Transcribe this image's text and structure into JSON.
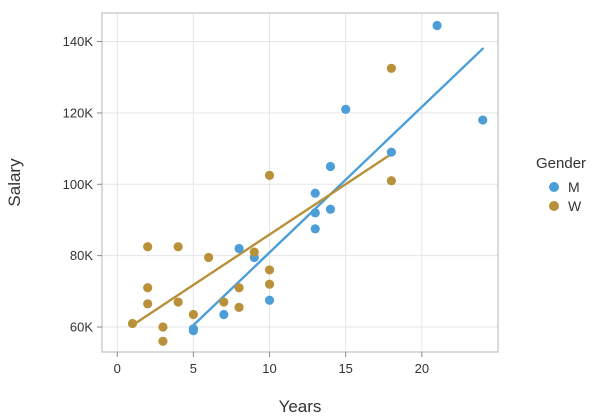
{
  "chart_data": {
    "type": "scatter",
    "xlabel": "Years",
    "ylabel": "Salary",
    "xlim": [
      -1,
      25
    ],
    "ylim": [
      53000,
      148000
    ],
    "x_ticks": [
      0,
      5,
      10,
      15,
      20
    ],
    "x_tick_labels": [
      "0",
      "5",
      "10",
      "15",
      "20"
    ],
    "y_ticks": [
      60000,
      80000,
      100000,
      120000,
      140000
    ],
    "y_tick_labels": [
      "60K",
      "80K",
      "100K",
      "120K",
      "140K"
    ],
    "grid": true,
    "legend": {
      "title": "Gender",
      "placement": "right",
      "entries": [
        {
          "label": "M",
          "color": "#4C9ED9"
        },
        {
          "label": "W",
          "color": "#B8913A"
        }
      ]
    },
    "series": [
      {
        "name": "M",
        "color": "#4C9ED9",
        "points": [
          {
            "x": 5,
            "y": 59500
          },
          {
            "x": 5,
            "y": 59000
          },
          {
            "x": 7,
            "y": 63500
          },
          {
            "x": 8,
            "y": 82000
          },
          {
            "x": 9,
            "y": 79500
          },
          {
            "x": 10,
            "y": 67500
          },
          {
            "x": 13,
            "y": 97500
          },
          {
            "x": 13,
            "y": 92000
          },
          {
            "x": 13,
            "y": 87500
          },
          {
            "x": 14,
            "y": 105000
          },
          {
            "x": 14,
            "y": 93000
          },
          {
            "x": 15,
            "y": 121000
          },
          {
            "x": 18,
            "y": 109000
          },
          {
            "x": 21,
            "y": 144500
          },
          {
            "x": 24,
            "y": 118000
          }
        ],
        "fit": {
          "x": [
            5,
            24
          ],
          "y": [
            60500,
            138000
          ]
        }
      },
      {
        "name": "W",
        "color": "#B8913A",
        "points": [
          {
            "x": 1,
            "y": 61000
          },
          {
            "x": 2,
            "y": 82500
          },
          {
            "x": 2,
            "y": 71000
          },
          {
            "x": 2,
            "y": 66500
          },
          {
            "x": 3,
            "y": 60000
          },
          {
            "x": 3,
            "y": 56000
          },
          {
            "x": 4,
            "y": 82500
          },
          {
            "x": 4,
            "y": 67000
          },
          {
            "x": 5,
            "y": 63500
          },
          {
            "x": 6,
            "y": 79500
          },
          {
            "x": 7,
            "y": 67000
          },
          {
            "x": 8,
            "y": 71000
          },
          {
            "x": 8,
            "y": 65500
          },
          {
            "x": 9,
            "y": 81000
          },
          {
            "x": 10,
            "y": 102500
          },
          {
            "x": 10,
            "y": 76000
          },
          {
            "x": 10,
            "y": 72000
          },
          {
            "x": 18,
            "y": 132500
          },
          {
            "x": 18,
            "y": 101000
          }
        ],
        "fit": {
          "x": [
            1,
            18
          ],
          "y": [
            60500,
            108500
          ]
        }
      }
    ]
  }
}
